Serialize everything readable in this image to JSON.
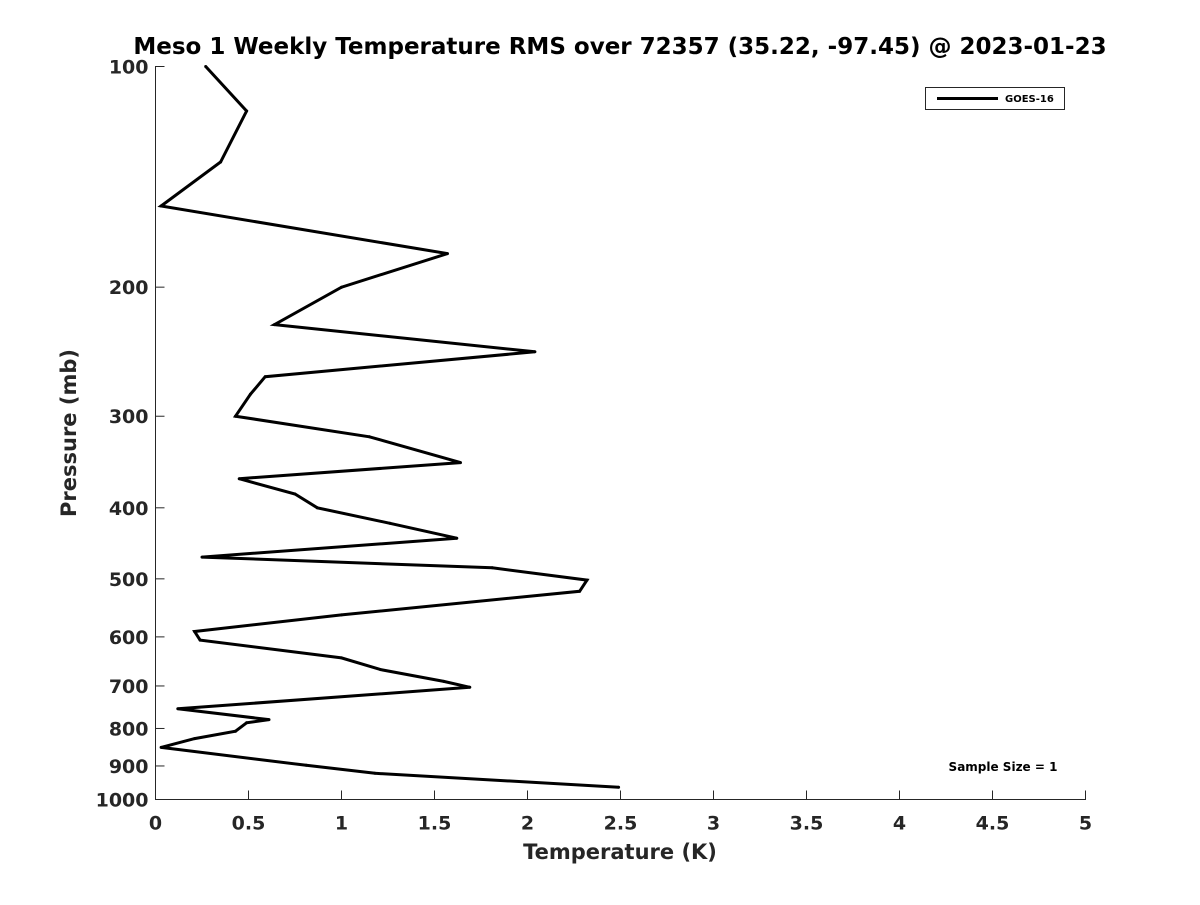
{
  "chart_data": {
    "type": "line",
    "title": "Meso 1 Weekly Temperature RMS over 72357 (35.22, -97.45) @ 2023-01-23",
    "xlabel": "Temperature (K)",
    "ylabel": "Pressure (mb)",
    "xlim": [
      0,
      5
    ],
    "ylim": [
      100,
      1000
    ],
    "y_scale": "log",
    "y_reversed": true,
    "grid": false,
    "legend_position": "top-right",
    "x_ticks": [
      "0",
      "0.5",
      "1",
      "1.5",
      "2",
      "2.5",
      "3",
      "3.5",
      "4",
      "4.5",
      "5"
    ],
    "y_ticks": [
      "100",
      "200",
      "300",
      "400",
      "500",
      "600",
      "700",
      "800",
      "900",
      "1000"
    ],
    "series": [
      {
        "name": "GOES-16",
        "color": "#000000",
        "x": [
          0.27,
          0.49,
          0.35,
          0.03,
          1.57,
          1.0,
          0.64,
          2.04,
          0.59,
          0.51,
          0.43,
          1.15,
          1.64,
          0.45,
          0.75,
          0.87,
          1.26,
          1.62,
          0.25,
          1.81,
          2.32,
          2.28,
          1.0,
          0.21,
          0.24,
          1.0,
          1.21,
          1.55,
          1.69,
          0.12,
          0.61,
          0.49,
          0.43,
          0.21,
          0.03,
          0.81,
          1.18,
          2.49
        ],
        "y": [
          100,
          115,
          135,
          155,
          180,
          200,
          225,
          245,
          265,
          280,
          300,
          320,
          347,
          365,
          383,
          400,
          420,
          440,
          467,
          483,
          502,
          520,
          560,
          590,
          606,
          641,
          665,
          690,
          703,
          752,
          778,
          786,
          807,
          826,
          849,
          898,
          921,
          962
        ]
      }
    ],
    "annotations": [
      "Sample Size = 1"
    ]
  }
}
